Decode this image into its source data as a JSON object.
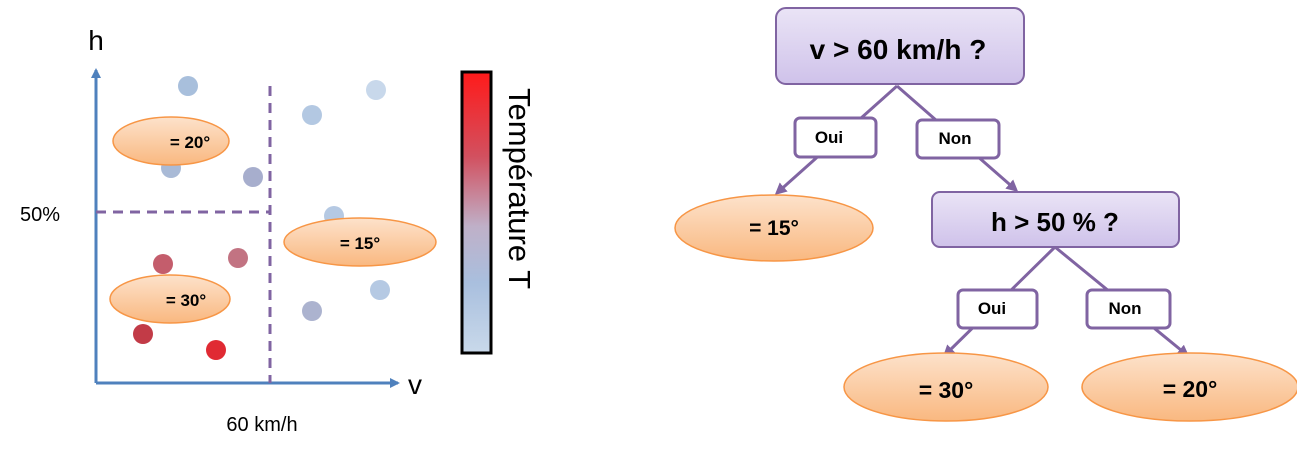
{
  "scatter": {
    "y_axis_label": "h",
    "x_axis_label": "v",
    "y_threshold_label": "50%",
    "x_threshold_label": "60 km/h",
    "region_labels": [
      {
        "text": "= 20°"
      },
      {
        "text": "= 15°"
      },
      {
        "text": "= 30°"
      }
    ],
    "colorbar_label": "Température T",
    "colors": {
      "axis": "#4f81bd",
      "divider": "#8064a2",
      "hot": "#ff1a1a",
      "cold": "#c5d6ea",
      "label_fill": "#fbc9a0",
      "label_stroke": "#f79646"
    }
  },
  "tree": {
    "root_question": "v > 60 km/h ?",
    "yes_label_1": "Oui",
    "no_label_1": "Non",
    "leaf_1": "= 15°",
    "second_question": "h > 50 % ?",
    "yes_label_2": "Oui",
    "no_label_2": "Non",
    "leaf_2": "= 30°",
    "leaf_3": "= 20°",
    "colors": {
      "node_fill": "#dcd2f0",
      "node_stroke": "#8064a2",
      "edge": "#8064a2",
      "leaf_fill": "#fbc9a0",
      "leaf_stroke": "#f79646"
    }
  }
}
